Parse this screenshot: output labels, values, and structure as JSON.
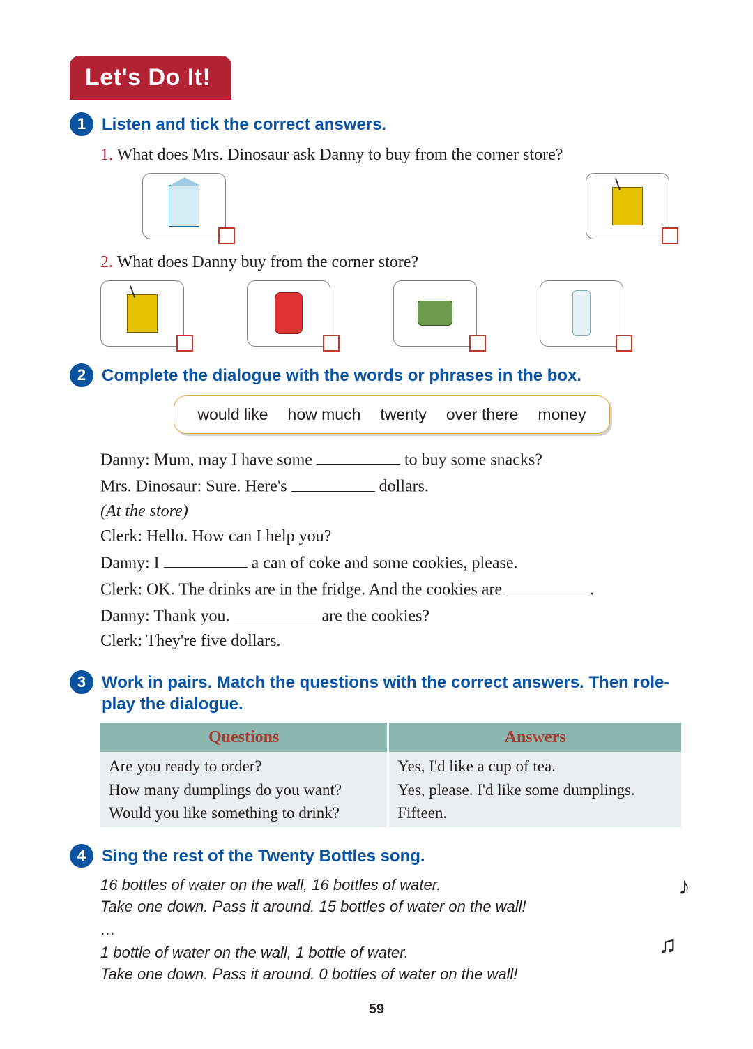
{
  "banner": "Let's Do It!",
  "sections": {
    "s1": {
      "num": "1",
      "title": "Listen and tick the correct answers.",
      "q1": {
        "num": "1.",
        "text": "What does Mrs. Dinosaur ask Danny to buy from the corner store?"
      },
      "q2": {
        "num": "2.",
        "text": "What does Danny buy from the corner store?"
      }
    },
    "s2": {
      "num": "2",
      "title": "Complete the dialogue with the words or phrases in the box.",
      "words": [
        "would like",
        "how much",
        "twenty",
        "over there",
        "money"
      ],
      "dialogue": {
        "l1a": "Danny: Mum, may I have some ",
        "l1b": " to buy some snacks?",
        "l2a": "Mrs. Dinosaur: Sure. Here's ",
        "l2b": " dollars.",
        "scene": "(At the store)",
        "l3": "Clerk: Hello. How can I help you?",
        "l4a": "Danny: I ",
        "l4b": " a can of coke and some cookies, please.",
        "l5a": "Clerk: OK. The drinks are in the fridge. And the cookies are ",
        "l5b": ".",
        "l6a": "Danny: Thank you. ",
        "l6b": " are the cookies?",
        "l7": "Clerk: They're five dollars."
      }
    },
    "s3": {
      "num": "3",
      "title": "Work in pairs. Match the questions with the correct answers. Then role-play the dialogue.",
      "headers": {
        "q": "Questions",
        "a": "Answers"
      },
      "questions": [
        "Are you ready to order?",
        "How many dumplings do you want?",
        "Would you like something to drink?"
      ],
      "answers": [
        "Yes, I'd like a cup of tea.",
        "Yes, please. I'd like some dumplings.",
        "Fifteen."
      ]
    },
    "s4": {
      "num": "4",
      "title": "Sing the rest of the Twenty Bottles song.",
      "lines": [
        "16 bottles of water on the wall, 16 bottles of water.",
        "Take one down. Pass it around. 15 bottles of water on the wall!",
        "…",
        "1 bottle of water on the wall, 1 bottle of water.",
        "Take one down. Pass it around. 0 bottles of water on the wall!"
      ]
    }
  },
  "page_number": "59",
  "icons": {
    "q1": [
      "milk-carton",
      "juice-box"
    ],
    "q2": [
      "juice-box",
      "soda-can",
      "tea-cup",
      "water-bottle"
    ]
  },
  "colors": {
    "banner_bg": "#b22234",
    "accent_blue": "#0a53a1",
    "qnum_red": "#b22234",
    "wordbox_border": "#e7a63b",
    "table_header_bg": "#8cb7b0",
    "table_header_fg": "#a73c2f",
    "table_cell_bg": "#e9efef"
  }
}
